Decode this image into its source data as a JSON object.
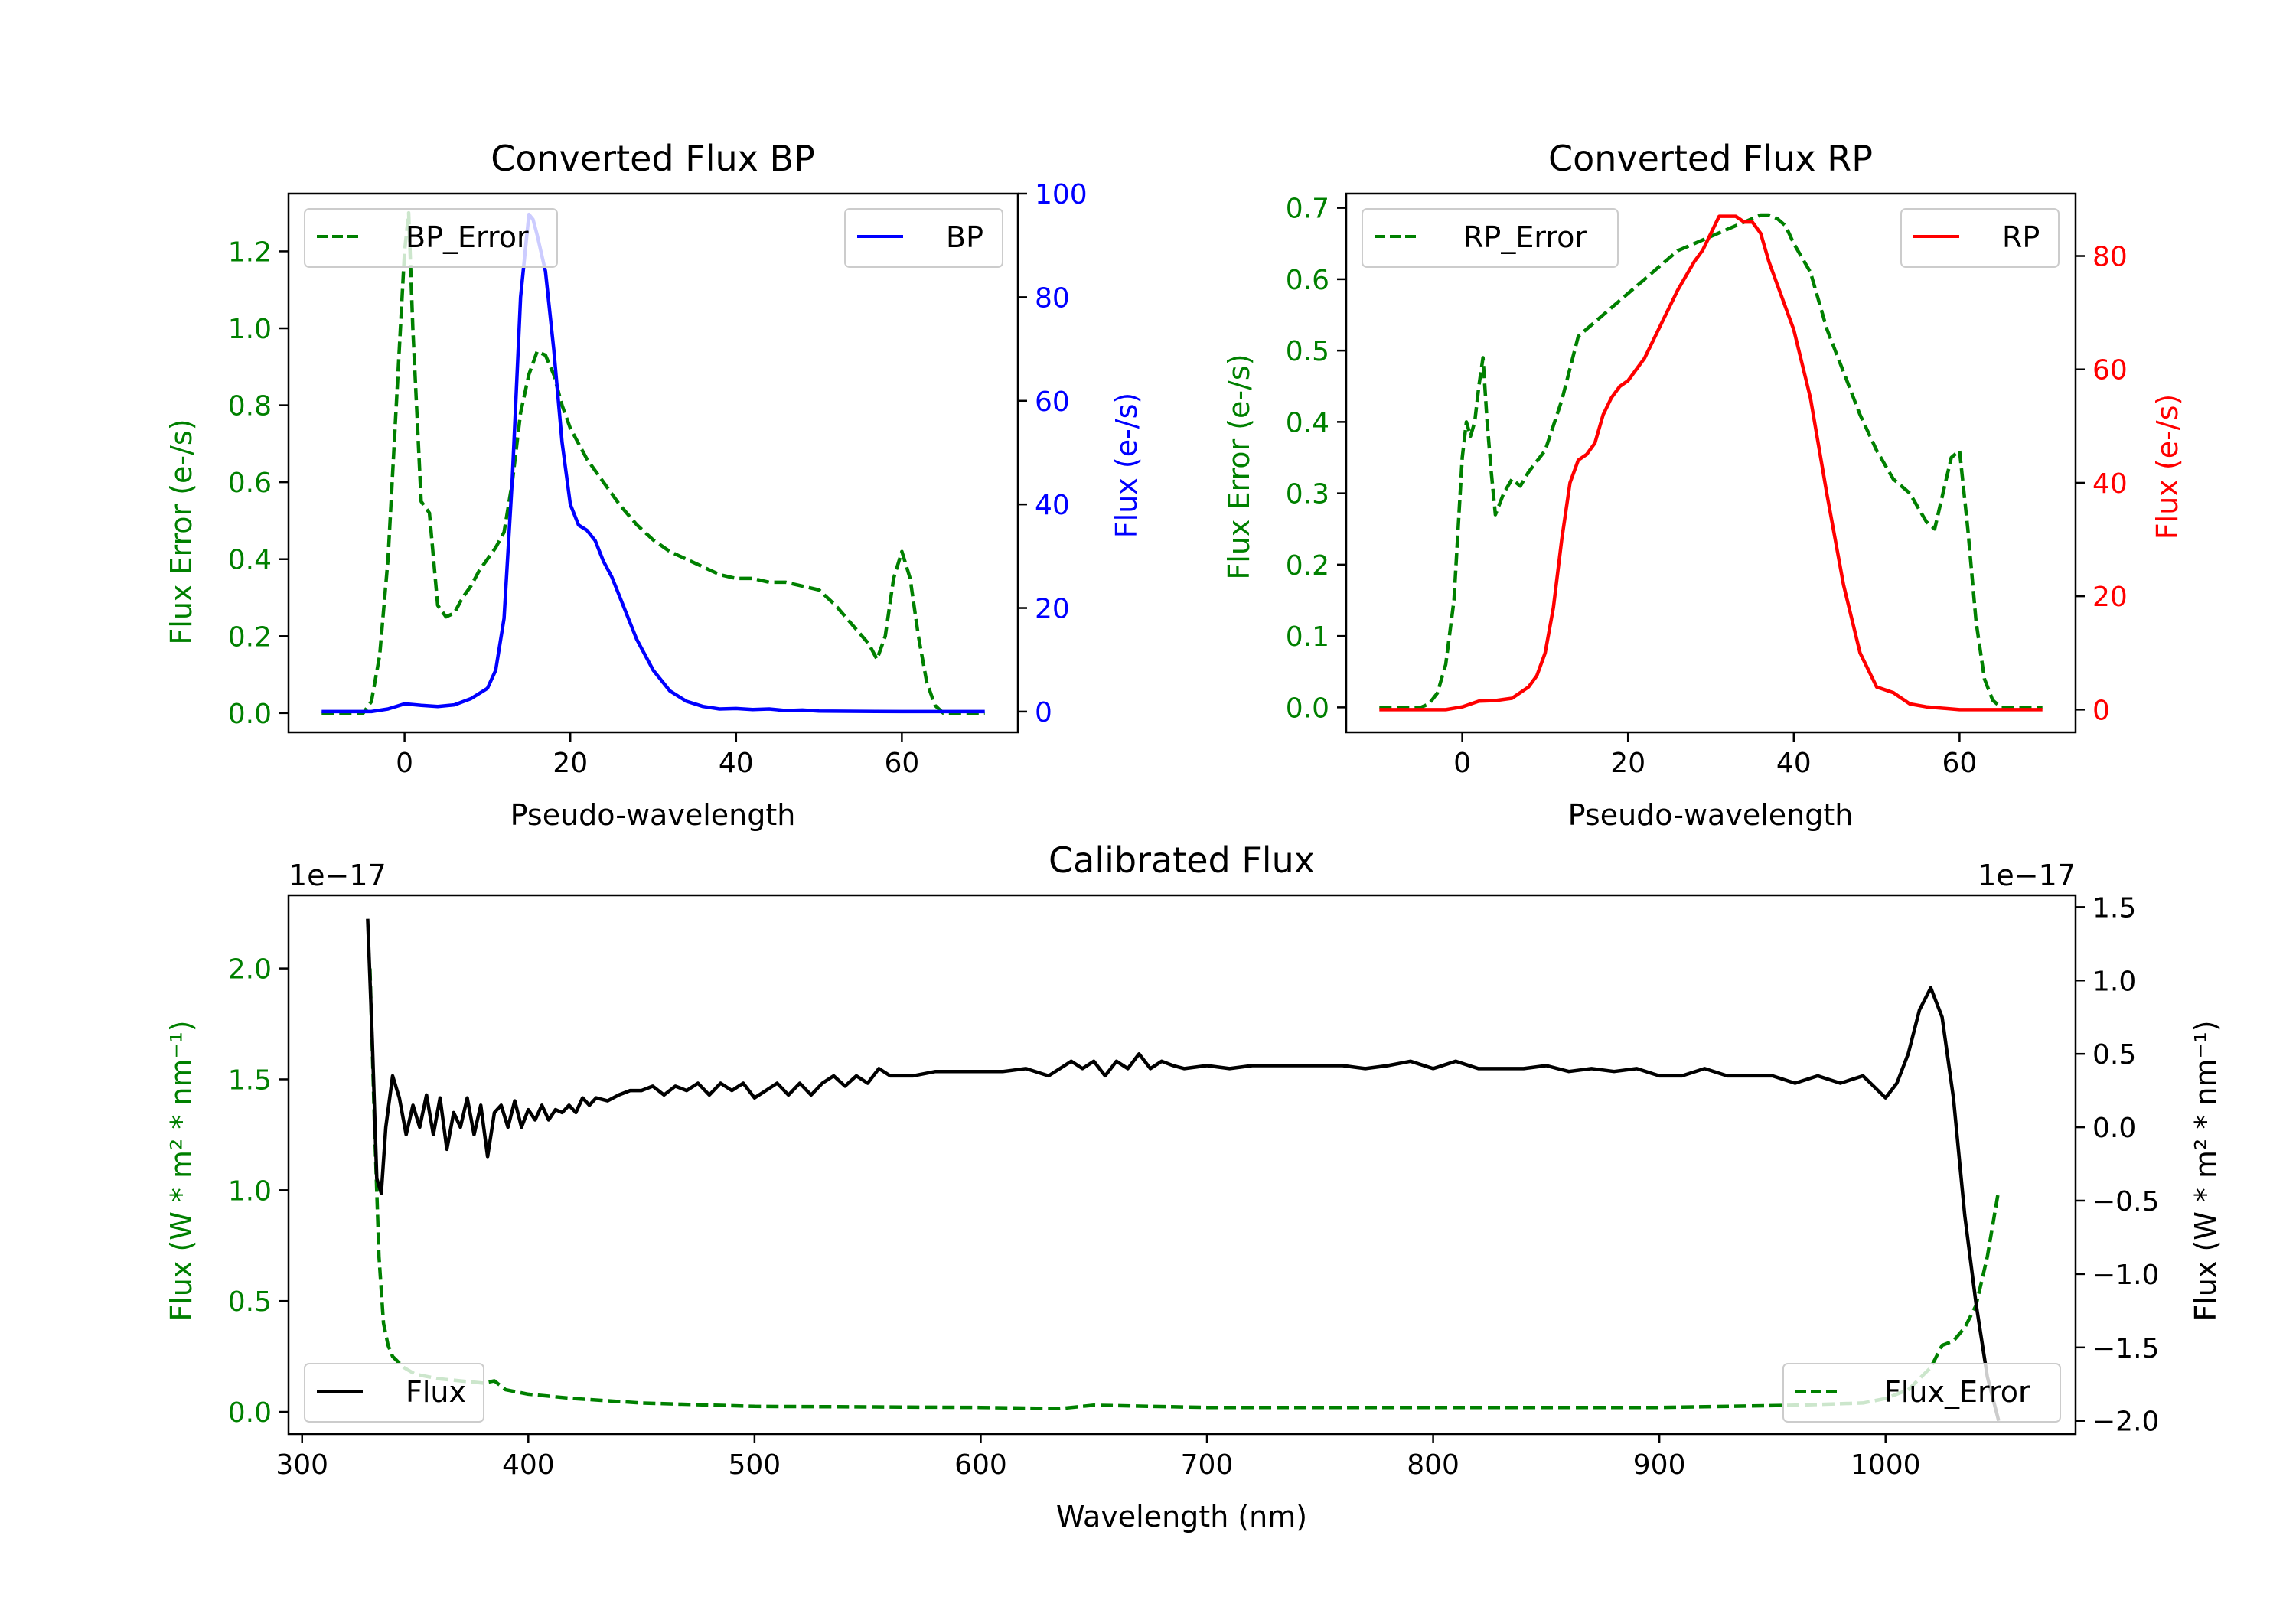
{
  "colors": {
    "green": "#008000",
    "blue": "#0000ff",
    "red": "#ff0000",
    "black": "#000000"
  },
  "chart_data": [
    {
      "type": "line",
      "title": "Converted Flux BP",
      "xlabel": "Pseudo-wavelength",
      "ylabel_left": "Flux Error (e-/s)",
      "ylabel_right": "Flux (e-/s)",
      "xlim": [
        -14,
        74
      ],
      "ylim_left": [
        -0.05,
        1.35
      ],
      "ylim_right": [
        -4,
        100
      ],
      "xticks": [
        0,
        20,
        40,
        60
      ],
      "xtick_labels": [
        "0",
        "20",
        "40",
        "60"
      ],
      "yticks_left": [
        0,
        0.2,
        0.4,
        0.6,
        0.8,
        1.0,
        1.2
      ],
      "ytick_labels_left": [
        "0.0",
        "0.2",
        "0.4",
        "0.6",
        "0.8",
        "1.0",
        "1.2"
      ],
      "yticks_right": [
        0,
        20,
        40,
        60,
        80,
        100
      ],
      "ytick_labels_right": [
        "0",
        "20",
        "40",
        "60",
        "80",
        "100"
      ],
      "legend_left": "BP_Error",
      "legend_right": "BP",
      "series": [
        {
          "name": "BP_Error",
          "axis": "left",
          "style": "dashed",
          "color": "#008000",
          "x": [
            -10,
            -5,
            -4,
            -3,
            -2,
            -1,
            0,
            0.5,
            1,
            2,
            3,
            4,
            5,
            6,
            7,
            8,
            9,
            10,
            11,
            12,
            13,
            14,
            15,
            16,
            17,
            18,
            19,
            20,
            22,
            24,
            26,
            28,
            30,
            32,
            34,
            36,
            38,
            40,
            42,
            44,
            46,
            48,
            50,
            52,
            54,
            56,
            57,
            58,
            59,
            60,
            61,
            62,
            63,
            64,
            65,
            70
          ],
          "y": [
            0.0,
            0.0,
            0.03,
            0.15,
            0.4,
            0.8,
            1.2,
            1.3,
            1.0,
            0.55,
            0.52,
            0.28,
            0.25,
            0.26,
            0.3,
            0.33,
            0.37,
            0.4,
            0.43,
            0.47,
            0.6,
            0.78,
            0.88,
            0.94,
            0.93,
            0.88,
            0.8,
            0.74,
            0.66,
            0.6,
            0.54,
            0.49,
            0.45,
            0.42,
            0.4,
            0.38,
            0.36,
            0.35,
            0.35,
            0.34,
            0.34,
            0.33,
            0.32,
            0.28,
            0.23,
            0.18,
            0.14,
            0.2,
            0.35,
            0.42,
            0.35,
            0.2,
            0.08,
            0.02,
            0.0,
            0.0
          ]
        },
        {
          "name": "BP",
          "axis": "right",
          "style": "solid",
          "color": "#0000ff",
          "x": [
            -10,
            -4,
            -2,
            0,
            2,
            4,
            6,
            8,
            10,
            11,
            12,
            13,
            14,
            15,
            15.5,
            16,
            17,
            18,
            19,
            20,
            21,
            22,
            23,
            24,
            25,
            26,
            27,
            28,
            30,
            32,
            34,
            36,
            38,
            40,
            42,
            44,
            46,
            48,
            50,
            55,
            60,
            70
          ],
          "y": [
            0,
            0,
            0.5,
            1.5,
            1.2,
            1.0,
            1.3,
            2.5,
            4.5,
            8,
            18,
            45,
            80,
            96,
            95,
            92,
            85,
            70,
            52,
            40,
            36,
            35,
            33,
            29,
            26,
            22,
            18,
            14,
            8,
            4,
            2,
            1,
            0.5,
            0.6,
            0.4,
            0.5,
            0.2,
            0.3,
            0.1,
            0.05,
            0,
            0
          ]
        }
      ]
    },
    {
      "type": "line",
      "title": "Converted Flux RP",
      "xlabel": "Pseudo-wavelength",
      "ylabel_left": "Flux Error (e-/s)",
      "ylabel_right": "Flux (e-/s)",
      "xlim": [
        -14,
        74
      ],
      "ylim_left": [
        -0.035,
        0.72
      ],
      "ylim_right": [
        -4,
        91
      ],
      "xticks": [
        0,
        20,
        40,
        60
      ],
      "xtick_labels": [
        "0",
        "20",
        "40",
        "60"
      ],
      "yticks_left": [
        0,
        0.1,
        0.2,
        0.3,
        0.4,
        0.5,
        0.6,
        0.7
      ],
      "ytick_labels_left": [
        "0.0",
        "0.1",
        "0.2",
        "0.3",
        "0.4",
        "0.5",
        "0.6",
        "0.7"
      ],
      "yticks_right": [
        0,
        20,
        40,
        60,
        80
      ],
      "ytick_labels_right": [
        "0",
        "20",
        "40",
        "60",
        "80"
      ],
      "legend_left": "RP_Error",
      "legend_right": "RP",
      "series": [
        {
          "name": "RP_Error",
          "axis": "left",
          "style": "dashed",
          "color": "#008000",
          "x": [
            -10,
            -5,
            -4,
            -3,
            -2,
            -1,
            0,
            0.5,
            1,
            1.5,
            2,
            2.5,
            3,
            3.5,
            4,
            5,
            6,
            7,
            8,
            10,
            12,
            14,
            16,
            18,
            20,
            22,
            24,
            26,
            28,
            30,
            32,
            34,
            36,
            37,
            38,
            39,
            40,
            41,
            42,
            44,
            46,
            48,
            50,
            52,
            54,
            55,
            56,
            57,
            58,
            59,
            60,
            61,
            62,
            63,
            64,
            65,
            70
          ],
          "y": [
            0,
            0,
            0.005,
            0.02,
            0.06,
            0.15,
            0.35,
            0.4,
            0.38,
            0.4,
            0.45,
            0.49,
            0.4,
            0.33,
            0.27,
            0.3,
            0.32,
            0.31,
            0.33,
            0.36,
            0.43,
            0.52,
            0.54,
            0.56,
            0.58,
            0.6,
            0.62,
            0.64,
            0.65,
            0.66,
            0.67,
            0.68,
            0.69,
            0.69,
            0.685,
            0.675,
            0.65,
            0.63,
            0.61,
            0.53,
            0.47,
            0.41,
            0.36,
            0.32,
            0.3,
            0.28,
            0.26,
            0.25,
            0.3,
            0.35,
            0.36,
            0.25,
            0.12,
            0.04,
            0.01,
            0,
            0
          ]
        },
        {
          "name": "RP",
          "axis": "right",
          "style": "solid",
          "color": "#ff0000",
          "x": [
            -10,
            -2,
            0,
            2,
            4,
            6,
            8,
            9,
            10,
            11,
            12,
            13,
            14,
            15,
            16,
            17,
            18,
            19,
            20,
            22,
            24,
            26,
            28,
            29,
            30,
            31,
            32,
            33,
            34,
            35,
            36,
            37,
            38,
            40,
            42,
            44,
            46,
            48,
            50,
            52,
            54,
            56,
            60,
            70
          ],
          "y": [
            0,
            0,
            0.5,
            1.5,
            1.6,
            2,
            4,
            6,
            10,
            18,
            30,
            40,
            44,
            45,
            47,
            52,
            55,
            57,
            58,
            62,
            68,
            74,
            79,
            81,
            84,
            87,
            87,
            87,
            86,
            86,
            84,
            79,
            75,
            67,
            55,
            38,
            22,
            10,
            4,
            3,
            1,
            0.5,
            0,
            0
          ]
        }
      ]
    },
    {
      "type": "line",
      "title": "Calibrated Flux",
      "xlabel": "Wavelength (nm)",
      "ylabel_left": "Flux (W * m² * nm⁻¹)",
      "ylabel_right": "Flux (W * m² * nm⁻¹)",
      "offset_left": "1e−17",
      "offset_right": "1e−17",
      "xlim": [
        294,
        1084
      ],
      "ylim_left": [
        -0.1,
        2.33
      ],
      "ylim_right": [
        -2.09,
        1.58
      ],
      "xticks": [
        300,
        400,
        500,
        600,
        700,
        800,
        900,
        1000
      ],
      "xtick_labels": [
        "300",
        "400",
        "500",
        "600",
        "700",
        "800",
        "900",
        "1000"
      ],
      "yticks_left": [
        0,
        0.5,
        1.0,
        1.5,
        2.0
      ],
      "ytick_labels_left": [
        "0.0",
        "0.5",
        "1.0",
        "1.5",
        "2.0"
      ],
      "yticks_right": [
        -2.0,
        -1.5,
        -1.0,
        -0.5,
        0.0,
        0.5,
        1.0,
        1.5
      ],
      "ytick_labels_right": [
        "−2.0",
        "−1.5",
        "−1.0",
        "−0.5",
        "0.0",
        "0.5",
        "1.0",
        "1.5"
      ],
      "legend_left": "Flux",
      "legend_right": "Flux_Error",
      "series": [
        {
          "name": "Flux_Error",
          "axis": "left",
          "style": "dashed",
          "color": "#008000",
          "x": [
            330,
            332,
            334,
            336,
            338,
            340,
            345,
            350,
            360,
            370,
            380,
            385,
            390,
            400,
            420,
            450,
            500,
            600,
            635,
            650,
            700,
            800,
            900,
            960,
            990,
            1000,
            1010,
            1020,
            1025,
            1030,
            1035,
            1040,
            1045,
            1050
          ],
          "y": [
            2.0,
            1.3,
            0.7,
            0.4,
            0.3,
            0.25,
            0.2,
            0.17,
            0.15,
            0.14,
            0.13,
            0.14,
            0.1,
            0.08,
            0.06,
            0.04,
            0.025,
            0.02,
            0.015,
            0.03,
            0.02,
            0.02,
            0.02,
            0.03,
            0.04,
            0.06,
            0.1,
            0.2,
            0.3,
            0.32,
            0.38,
            0.48,
            0.7,
            1.0
          ]
        },
        {
          "name": "Flux",
          "axis": "right",
          "style": "solid",
          "color": "#000000",
          "x": [
            329,
            331,
            333,
            335,
            337,
            340,
            343,
            346,
            349,
            352,
            355,
            358,
            361,
            364,
            367,
            370,
            373,
            376,
            379,
            382,
            385,
            388,
            391,
            394,
            397,
            400,
            403,
            406,
            409,
            412,
            415,
            418,
            421,
            424,
            427,
            430,
            435,
            440,
            445,
            450,
            455,
            460,
            465,
            470,
            475,
            480,
            485,
            490,
            495,
            500,
            505,
            510,
            515,
            520,
            525,
            530,
            535,
            540,
            545,
            550,
            555,
            560,
            570,
            580,
            590,
            600,
            610,
            620,
            630,
            635,
            640,
            645,
            650,
            655,
            660,
            665,
            670,
            675,
            680,
            685,
            690,
            700,
            710,
            720,
            730,
            740,
            750,
            760,
            770,
            780,
            790,
            800,
            810,
            820,
            830,
            840,
            850,
            860,
            870,
            880,
            890,
            900,
            910,
            920,
            930,
            940,
            950,
            960,
            970,
            980,
            990,
            1000,
            1005,
            1010,
            1015,
            1020,
            1025,
            1030,
            1035,
            1040,
            1045,
            1050
          ],
          "y": [
            1.42,
            0.6,
            -0.35,
            -0.45,
            0.0,
            0.35,
            0.2,
            -0.05,
            0.15,
            0.0,
            0.22,
            -0.05,
            0.2,
            -0.15,
            0.1,
            0.0,
            0.2,
            -0.05,
            0.15,
            -0.2,
            0.1,
            0.15,
            0.0,
            0.18,
            0.0,
            0.12,
            0.05,
            0.15,
            0.05,
            0.12,
            0.1,
            0.15,
            0.1,
            0.2,
            0.15,
            0.2,
            0.18,
            0.22,
            0.25,
            0.25,
            0.28,
            0.22,
            0.28,
            0.25,
            0.3,
            0.22,
            0.3,
            0.25,
            0.3,
            0.2,
            0.25,
            0.3,
            0.22,
            0.3,
            0.22,
            0.3,
            0.35,
            0.28,
            0.35,
            0.3,
            0.4,
            0.35,
            0.35,
            0.38,
            0.38,
            0.38,
            0.38,
            0.4,
            0.35,
            0.4,
            0.45,
            0.4,
            0.45,
            0.35,
            0.45,
            0.4,
            0.5,
            0.4,
            0.45,
            0.42,
            0.4,
            0.42,
            0.4,
            0.42,
            0.42,
            0.42,
            0.42,
            0.42,
            0.4,
            0.42,
            0.45,
            0.4,
            0.45,
            0.4,
            0.4,
            0.4,
            0.42,
            0.38,
            0.4,
            0.38,
            0.4,
            0.35,
            0.35,
            0.4,
            0.35,
            0.35,
            0.35,
            0.3,
            0.35,
            0.3,
            0.35,
            0.2,
            0.3,
            0.5,
            0.8,
            0.95,
            0.75,
            0.2,
            -0.6,
            -1.2,
            -1.7,
            -2.0
          ]
        }
      ]
    }
  ]
}
